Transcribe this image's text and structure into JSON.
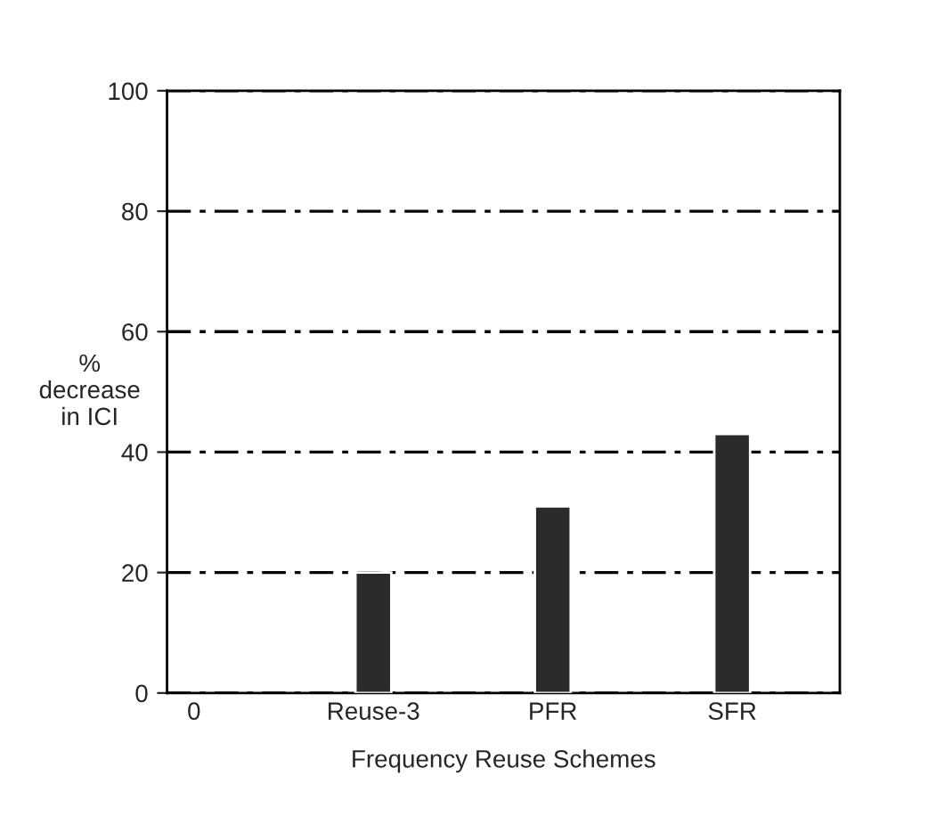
{
  "chart_data": {
    "type": "bar",
    "xlabel": "Frequency Reuse Schemes",
    "ylabel": "%\ndecrease\nin ICI",
    "categories": [
      "0",
      "Reuse-3",
      "PFR",
      "SFR"
    ],
    "values": [
      null,
      20,
      31,
      43
    ],
    "color": "#2b2b2b",
    "ylim": [
      0,
      100
    ],
    "yticks": [
      0,
      20,
      40,
      60,
      80,
      100
    ],
    "grid": "y",
    "line_style": "dashed"
  }
}
